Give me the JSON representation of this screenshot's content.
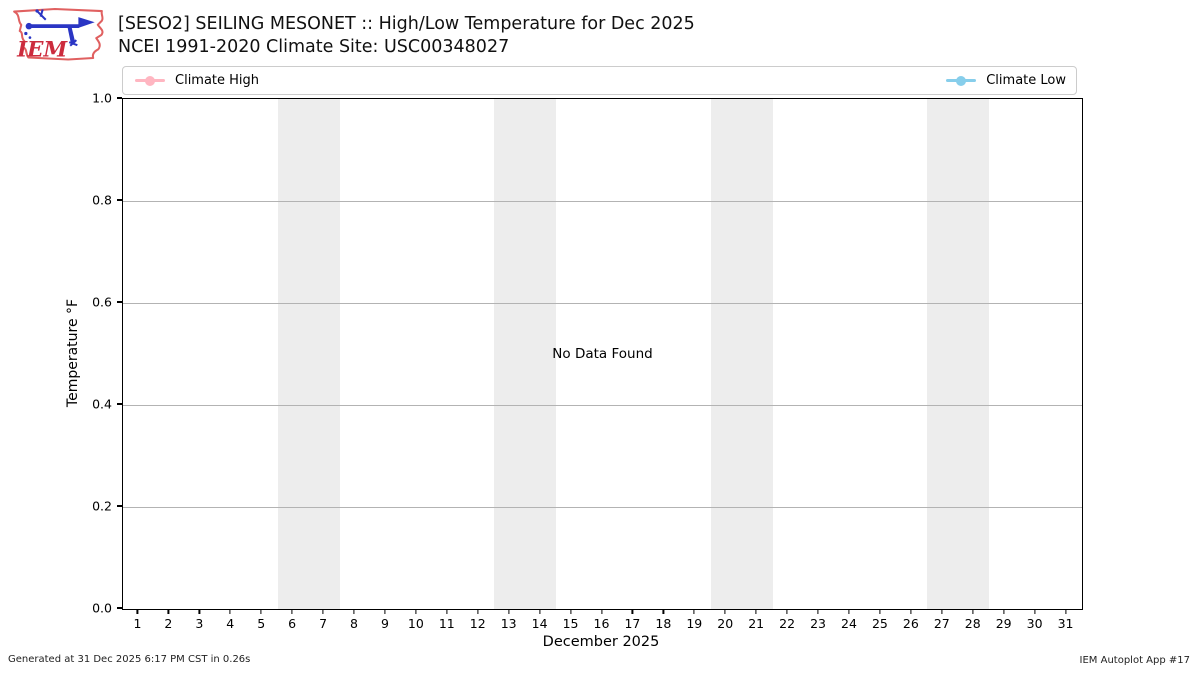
{
  "header": {
    "title_line1": "[SESO2] SEILING MESONET :: High/Low Temperature for Dec 2025",
    "title_line2": "NCEI 1991-2020 Climate Site: USC00348027",
    "logo_text": "IEM"
  },
  "legend": {
    "high": {
      "label": "Climate High",
      "color": "#FFB6C1"
    },
    "low": {
      "label": "Climate Low",
      "color": "#87CEEB"
    }
  },
  "chart_data": {
    "type": "line",
    "title": "[SESO2] SEILING MESONET :: High/Low Temperature for Dec 2025",
    "subtitle": "NCEI 1991-2020 Climate Site: USC00348027",
    "xlabel": "December 2025",
    "ylabel": "Temperature °F",
    "xlim": [
      0.5,
      31.5
    ],
    "ylim": [
      0.0,
      1.0
    ],
    "x_ticks": [
      1,
      2,
      3,
      4,
      5,
      6,
      7,
      8,
      9,
      10,
      11,
      12,
      13,
      14,
      15,
      16,
      17,
      18,
      19,
      20,
      21,
      22,
      23,
      24,
      25,
      26,
      27,
      28,
      29,
      30,
      31
    ],
    "y_ticks": [
      0.0,
      0.2,
      0.4,
      0.6,
      0.8,
      1.0
    ],
    "grid": true,
    "grid_values": [
      0.2,
      0.4,
      0.6,
      0.8
    ],
    "grid_color": "#b3b3b3",
    "legend_position": "top",
    "series": [
      {
        "name": "Climate High",
        "color": "#FFB6C1",
        "marker": "circle",
        "values": []
      },
      {
        "name": "Climate Low",
        "color": "#87CEEB",
        "marker": "circle",
        "values": []
      }
    ],
    "no_data_message": "No Data Found",
    "weekend_shading": {
      "color": "#ededed",
      "day_ranges": [
        [
          5.5,
          7.5
        ],
        [
          12.5,
          14.5
        ],
        [
          19.5,
          21.5
        ],
        [
          26.5,
          28.5
        ]
      ]
    }
  },
  "footer": {
    "left": "Generated at 31 Dec 2025 6:17 PM CST in 0.26s",
    "right": "IEM Autoplot App #17"
  }
}
